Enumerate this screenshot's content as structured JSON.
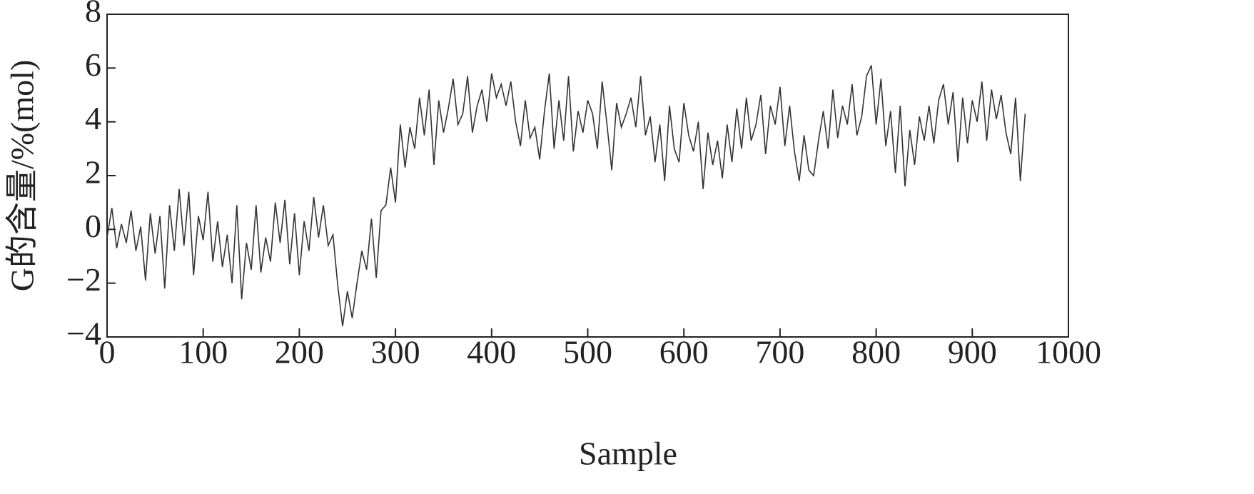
{
  "chart_data": {
    "type": "line",
    "x_label": "Sample",
    "y_label": "G的含量/%(mol)",
    "xlim": [
      0,
      1000
    ],
    "xticks": [
      0,
      100,
      200,
      300,
      400,
      500,
      600,
      700,
      800,
      900,
      1000
    ],
    "ylim": [
      -4,
      8
    ],
    "yticks": [
      {
        "value": -4,
        "label": "−4"
      },
      {
        "value": -2,
        "label": "−2"
      },
      0,
      2,
      4,
      6,
      8
    ],
    "x": [
      0,
      5,
      10,
      15,
      20,
      25,
      30,
      35,
      40,
      45,
      50,
      55,
      60,
      65,
      70,
      75,
      80,
      85,
      90,
      95,
      100,
      105,
      110,
      115,
      120,
      125,
      130,
      135,
      140,
      145,
      150,
      155,
      160,
      165,
      170,
      175,
      180,
      185,
      190,
      195,
      200,
      205,
      210,
      215,
      220,
      225,
      230,
      235,
      240,
      245,
      250,
      255,
      260,
      265,
      270,
      275,
      280,
      285,
      290,
      295,
      300,
      305,
      310,
      315,
      320,
      325,
      330,
      335,
      340,
      345,
      350,
      355,
      360,
      365,
      370,
      375,
      380,
      385,
      390,
      395,
      400,
      405,
      410,
      415,
      420,
      425,
      430,
      435,
      440,
      445,
      450,
      455,
      460,
      465,
      470,
      475,
      480,
      485,
      490,
      495,
      500,
      505,
      510,
      515,
      520,
      525,
      530,
      535,
      540,
      545,
      550,
      555,
      560,
      565,
      570,
      575,
      580,
      585,
      590,
      595,
      600,
      605,
      610,
      615,
      620,
      625,
      630,
      635,
      640,
      645,
      650,
      655,
      660,
      665,
      670,
      675,
      680,
      685,
      690,
      695,
      700,
      705,
      710,
      715,
      720,
      725,
      730,
      735,
      740,
      745,
      750,
      755,
      760,
      765,
      770,
      775,
      780,
      785,
      790,
      795,
      800,
      805,
      810,
      815,
      820,
      825,
      830,
      835,
      840,
      845,
      850,
      855,
      860,
      865,
      870,
      875,
      880,
      885,
      890,
      895,
      900,
      905,
      910,
      915,
      920,
      925,
      930,
      935,
      940,
      945,
      950,
      955
    ],
    "series": [
      {
        "color": "#333333",
        "values": [
          -0.3,
          0.8,
          -0.7,
          0.2,
          -0.5,
          0.7,
          -0.8,
          0.1,
          -1.9,
          0.6,
          -0.9,
          0.5,
          -2.2,
          0.9,
          -0.8,
          1.5,
          -0.6,
          1.4,
          -1.7,
          0.5,
          -0.4,
          1.4,
          -1.2,
          0.3,
          -1.4,
          -0.2,
          -2.0,
          0.9,
          -2.6,
          -0.5,
          -1.5,
          0.9,
          -1.6,
          -0.3,
          -1.2,
          1.0,
          -0.5,
          1.1,
          -1.3,
          0.6,
          -1.7,
          0.3,
          -0.8,
          1.2,
          -0.3,
          0.9,
          -0.6,
          -0.2,
          -2.1,
          -3.6,
          -2.3,
          -3.3,
          -2.0,
          -0.8,
          -1.5,
          0.4,
          -1.8,
          0.7,
          0.9,
          2.3,
          1.0,
          3.9,
          2.3,
          3.8,
          3.0,
          4.9,
          3.5,
          5.2,
          2.4,
          4.8,
          3.6,
          4.5,
          5.6,
          3.9,
          4.3,
          5.7,
          3.6,
          4.6,
          5.2,
          4.0,
          5.8,
          4.9,
          5.4,
          4.6,
          5.5,
          4.0,
          3.1,
          4.8,
          3.4,
          3.8,
          2.6,
          4.4,
          5.8,
          3.0,
          4.8,
          3.3,
          5.7,
          2.9,
          4.4,
          3.6,
          4.8,
          4.3,
          3.0,
          5.5,
          3.9,
          2.2,
          4.7,
          3.8,
          4.3,
          4.9,
          3.8,
          5.7,
          3.5,
          4.2,
          2.5,
          3.9,
          1.8,
          4.6,
          3.0,
          2.5,
          4.7,
          3.5,
          2.9,
          4.0,
          1.5,
          3.6,
          2.4,
          3.3,
          1.9,
          3.9,
          2.5,
          4.5,
          3.0,
          4.9,
          3.3,
          3.9,
          5.0,
          2.8,
          4.6,
          3.9,
          5.3,
          3.1,
          4.6,
          2.9,
          1.8,
          3.5,
          2.2,
          2.0,
          3.3,
          4.4,
          3.0,
          5.2,
          3.4,
          4.6,
          3.9,
          5.4,
          3.5,
          4.2,
          5.7,
          6.1,
          3.9,
          5.6,
          3.1,
          4.4,
          2.1,
          4.6,
          1.6,
          3.7,
          2.4,
          4.2,
          3.3,
          4.6,
          3.2,
          4.8,
          5.4,
          3.9,
          5.1,
          2.5,
          4.9,
          3.2,
          4.8,
          4.0,
          5.5,
          3.3,
          5.2,
          4.1,
          5.0,
          3.6,
          2.8,
          4.9,
          1.8,
          4.3
        ]
      }
    ]
  }
}
